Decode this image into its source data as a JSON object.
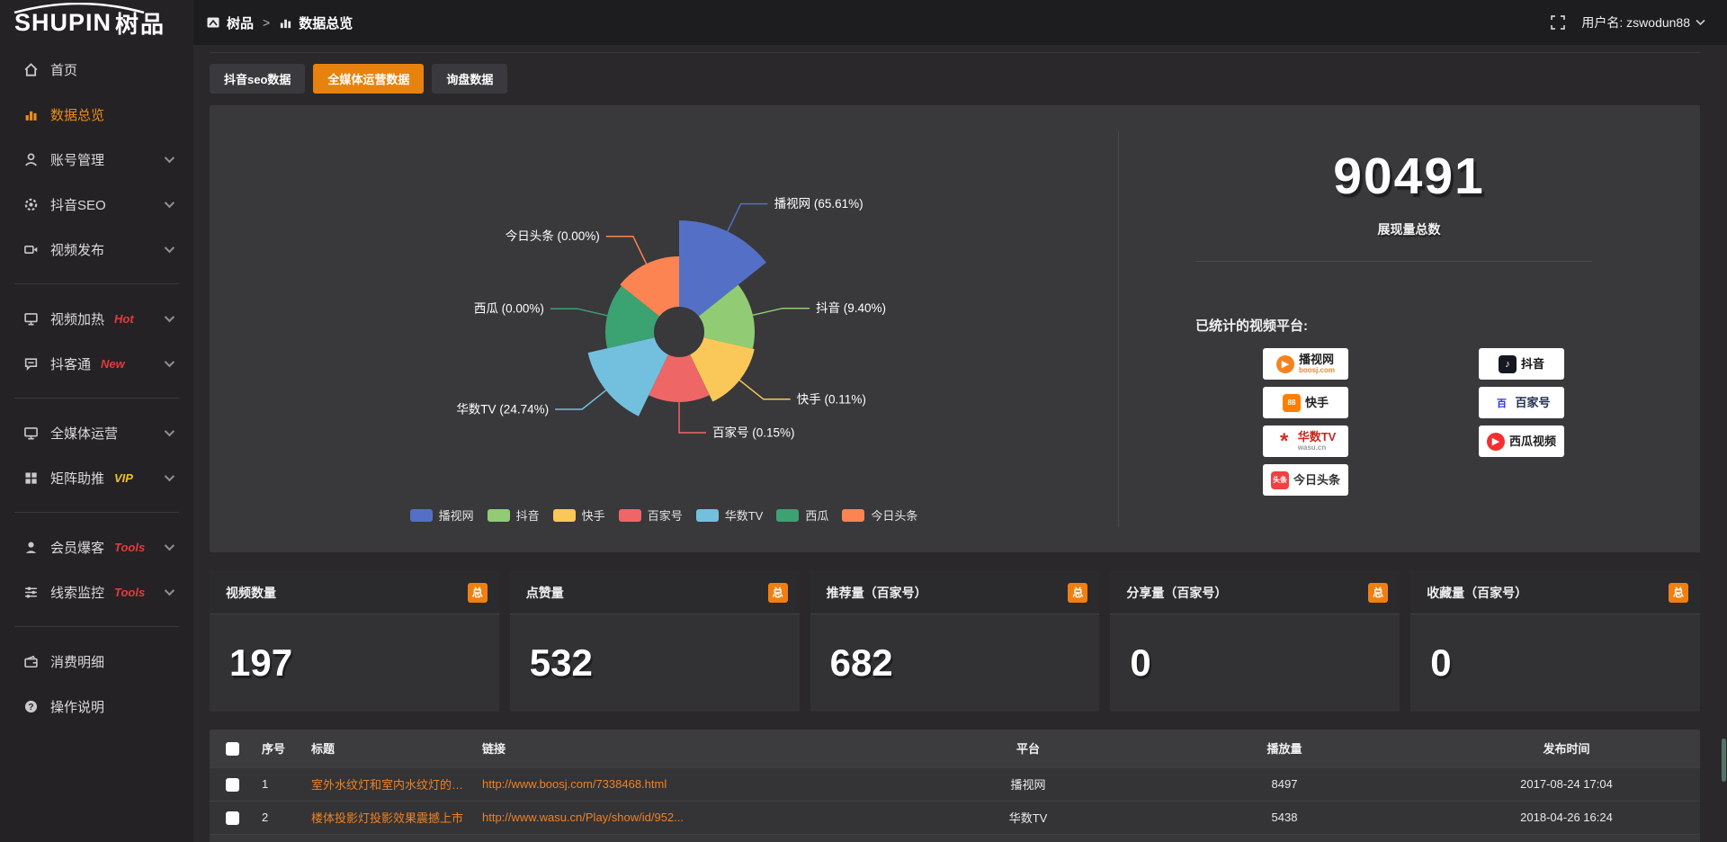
{
  "logo": {
    "text_en": "SHUPIN",
    "text_cn": "树品"
  },
  "topbar": {
    "breadcrumb_home": "树品",
    "separator": ">",
    "breadcrumb_current": "数据总览",
    "username_label": "用户名: zswodun88"
  },
  "sidebar": {
    "items": [
      {
        "label": "首页",
        "icon": "home-icon",
        "active": false,
        "chevron": false
      },
      {
        "label": "数据总览",
        "icon": "bar-chart-icon",
        "active": true,
        "chevron": false
      },
      {
        "label": "账号管理",
        "icon": "user-icon",
        "chevron": true
      },
      {
        "label": "抖音SEO",
        "icon": "gear-icon",
        "chevron": true
      },
      {
        "label": "视频发布",
        "icon": "video-icon",
        "chevron": true,
        "divider_after": true
      },
      {
        "label": "视频加热",
        "icon": "monitor-icon",
        "badge": "Hot",
        "badge_color": "#e23c3c",
        "chevron": true
      },
      {
        "label": "抖客通",
        "icon": "chat-icon",
        "badge": "New",
        "badge_color": "#e23c3c",
        "chevron": true,
        "divider_after": true
      },
      {
        "label": "全媒体运营",
        "icon": "display-icon",
        "chevron": true
      },
      {
        "label": "矩阵助推",
        "icon": "grid-icon",
        "badge": "VIP",
        "badge_color": "#f0c030",
        "chevron": true,
        "divider_after": true
      },
      {
        "label": "会员爆客",
        "icon": "person-icon",
        "badge": "Tools",
        "badge_color": "#e23c3c",
        "chevron": true
      },
      {
        "label": "线索监控",
        "icon": "sliders-icon",
        "badge": "Tools",
        "badge_color": "#e23c3c",
        "chevron": true,
        "divider_after": true
      },
      {
        "label": "消费明细",
        "icon": "wallet-icon",
        "chevron": false
      },
      {
        "label": "操作说明",
        "icon": "question-icon",
        "chevron": false
      }
    ]
  },
  "tabs": [
    {
      "label": "抖音seo数据",
      "active": false
    },
    {
      "label": "全媒体运营数据",
      "active": true
    },
    {
      "label": "询盘数据",
      "active": false
    }
  ],
  "chart_data": {
    "type": "pie",
    "variant": "rose",
    "inner_radius": 28,
    "legend_position": "bottom",
    "slices": [
      {
        "name": "播视网",
        "pct_label": "65.61%",
        "value": 65.61,
        "color": "#5470c6",
        "radius": 124
      },
      {
        "name": "抖音",
        "pct_label": "9.40%",
        "value": 9.4,
        "color": "#91cc75",
        "radius": 84
      },
      {
        "name": "快手",
        "pct_label": "0.11%",
        "value": 0.11,
        "color": "#fac858",
        "radius": 86
      },
      {
        "name": "百家号",
        "pct_label": "0.15%",
        "value": 0.15,
        "color": "#ee6666",
        "radius": 78
      },
      {
        "name": "华数TV",
        "pct_label": "24.74%",
        "value": 24.74,
        "color": "#73c0de",
        "radius": 104
      },
      {
        "name": "西瓜",
        "pct_label": "0.00%",
        "value": 0.0,
        "color": "#3ba272",
        "radius": 82
      },
      {
        "name": "今日头条",
        "pct_label": "0.00%",
        "value": 0.0,
        "color": "#fc8452",
        "radius": 84
      }
    ]
  },
  "summary": {
    "total_value": "90491",
    "total_label": "展现量总数",
    "platforms_label": "已统计的视频平台:",
    "badge_columns": [
      [
        {
          "name": "播视网",
          "sub": "boosj.com",
          "sub_color": "#f6821f",
          "icon_glyph": "▶",
          "icon_bg": "#f6821f",
          "icon_color": "#ffffff",
          "icon_round": true,
          "name_color": "#222222",
          "icon_name": "boosj-logo-icon"
        },
        {
          "name": "快手",
          "sub": "",
          "sub_color": "",
          "icon_glyph": "88",
          "icon_bg": "#ff7e00",
          "icon_color": "#ffffff",
          "icon_round": false,
          "name_color": "#222222",
          "icon_name": "kuaishou-logo-icon"
        },
        {
          "name": "华数TV",
          "sub": "wasu.cn",
          "sub_color": "#9a9a9a",
          "icon_glyph": "*",
          "icon_bg": "#ffffff",
          "icon_color": "#d82b22",
          "icon_round": false,
          "name_color": "#c8281e",
          "icon_name": "wasu-logo-icon"
        },
        {
          "name": "今日头条",
          "sub": "",
          "sub_color": "",
          "icon_glyph": "头条",
          "icon_bg": "#f04142",
          "icon_color": "#ffffff",
          "icon_round": false,
          "name_color": "#333333",
          "icon_name": "toutiao-logo-icon"
        }
      ],
      [
        {
          "name": "抖音",
          "sub": "",
          "sub_color": "",
          "icon_glyph": "♪",
          "icon_bg": "#16181f",
          "icon_color": "#ffffff",
          "icon_round": false,
          "name_color": "#111111",
          "icon_name": "douyin-logo-icon"
        },
        {
          "name": "百家号",
          "sub": "",
          "sub_color": "",
          "icon_glyph": "百",
          "icon_bg": "#ffffff",
          "icon_color": "#2932e1",
          "icon_round": false,
          "name_color": "#22304e",
          "icon_name": "baijiahao-logo-icon"
        },
        {
          "name": "西瓜视频",
          "sub": "",
          "sub_color": "",
          "icon_glyph": "▶",
          "icon_bg": "#f23030",
          "icon_color": "#ffffff",
          "icon_round": true,
          "name_color": "#222222",
          "icon_name": "xigua-logo-icon"
        }
      ]
    ]
  },
  "stat_cards": [
    {
      "title": "视频数量",
      "badge": "总",
      "value": "197"
    },
    {
      "title": "点赞量",
      "badge": "总",
      "value": "532"
    },
    {
      "title": "推荐量（百家号）",
      "badge": "总",
      "value": "682"
    },
    {
      "title": "分享量（百家号）",
      "badge": "总",
      "value": "0"
    },
    {
      "title": "收藏量（百家号）",
      "badge": "总",
      "value": "0"
    }
  ],
  "table": {
    "columns": [
      "序号",
      "标题",
      "链接",
      "平台",
      "播放量",
      "发布时间"
    ],
    "rows": [
      {
        "index": "1",
        "title": "室外水纹灯和室内水纹灯的区别和简介",
        "link": "http://www.boosj.com/7338468.html",
        "platform": "播视网",
        "views": "8497",
        "time": "2017-08-24 17:04"
      },
      {
        "index": "2",
        "title": "楼体投影灯投影效果震撼上市",
        "link": "http://www.wasu.cn/Play/show/id/952...",
        "platform": "华数TV",
        "views": "5438",
        "time": "2018-04-26 16:24"
      }
    ]
  },
  "colors": {
    "accent_orange": "#e8820e",
    "badge_orange": "#f07f12",
    "link_orange": "#ee8224",
    "panel_bg": "#39383b"
  }
}
